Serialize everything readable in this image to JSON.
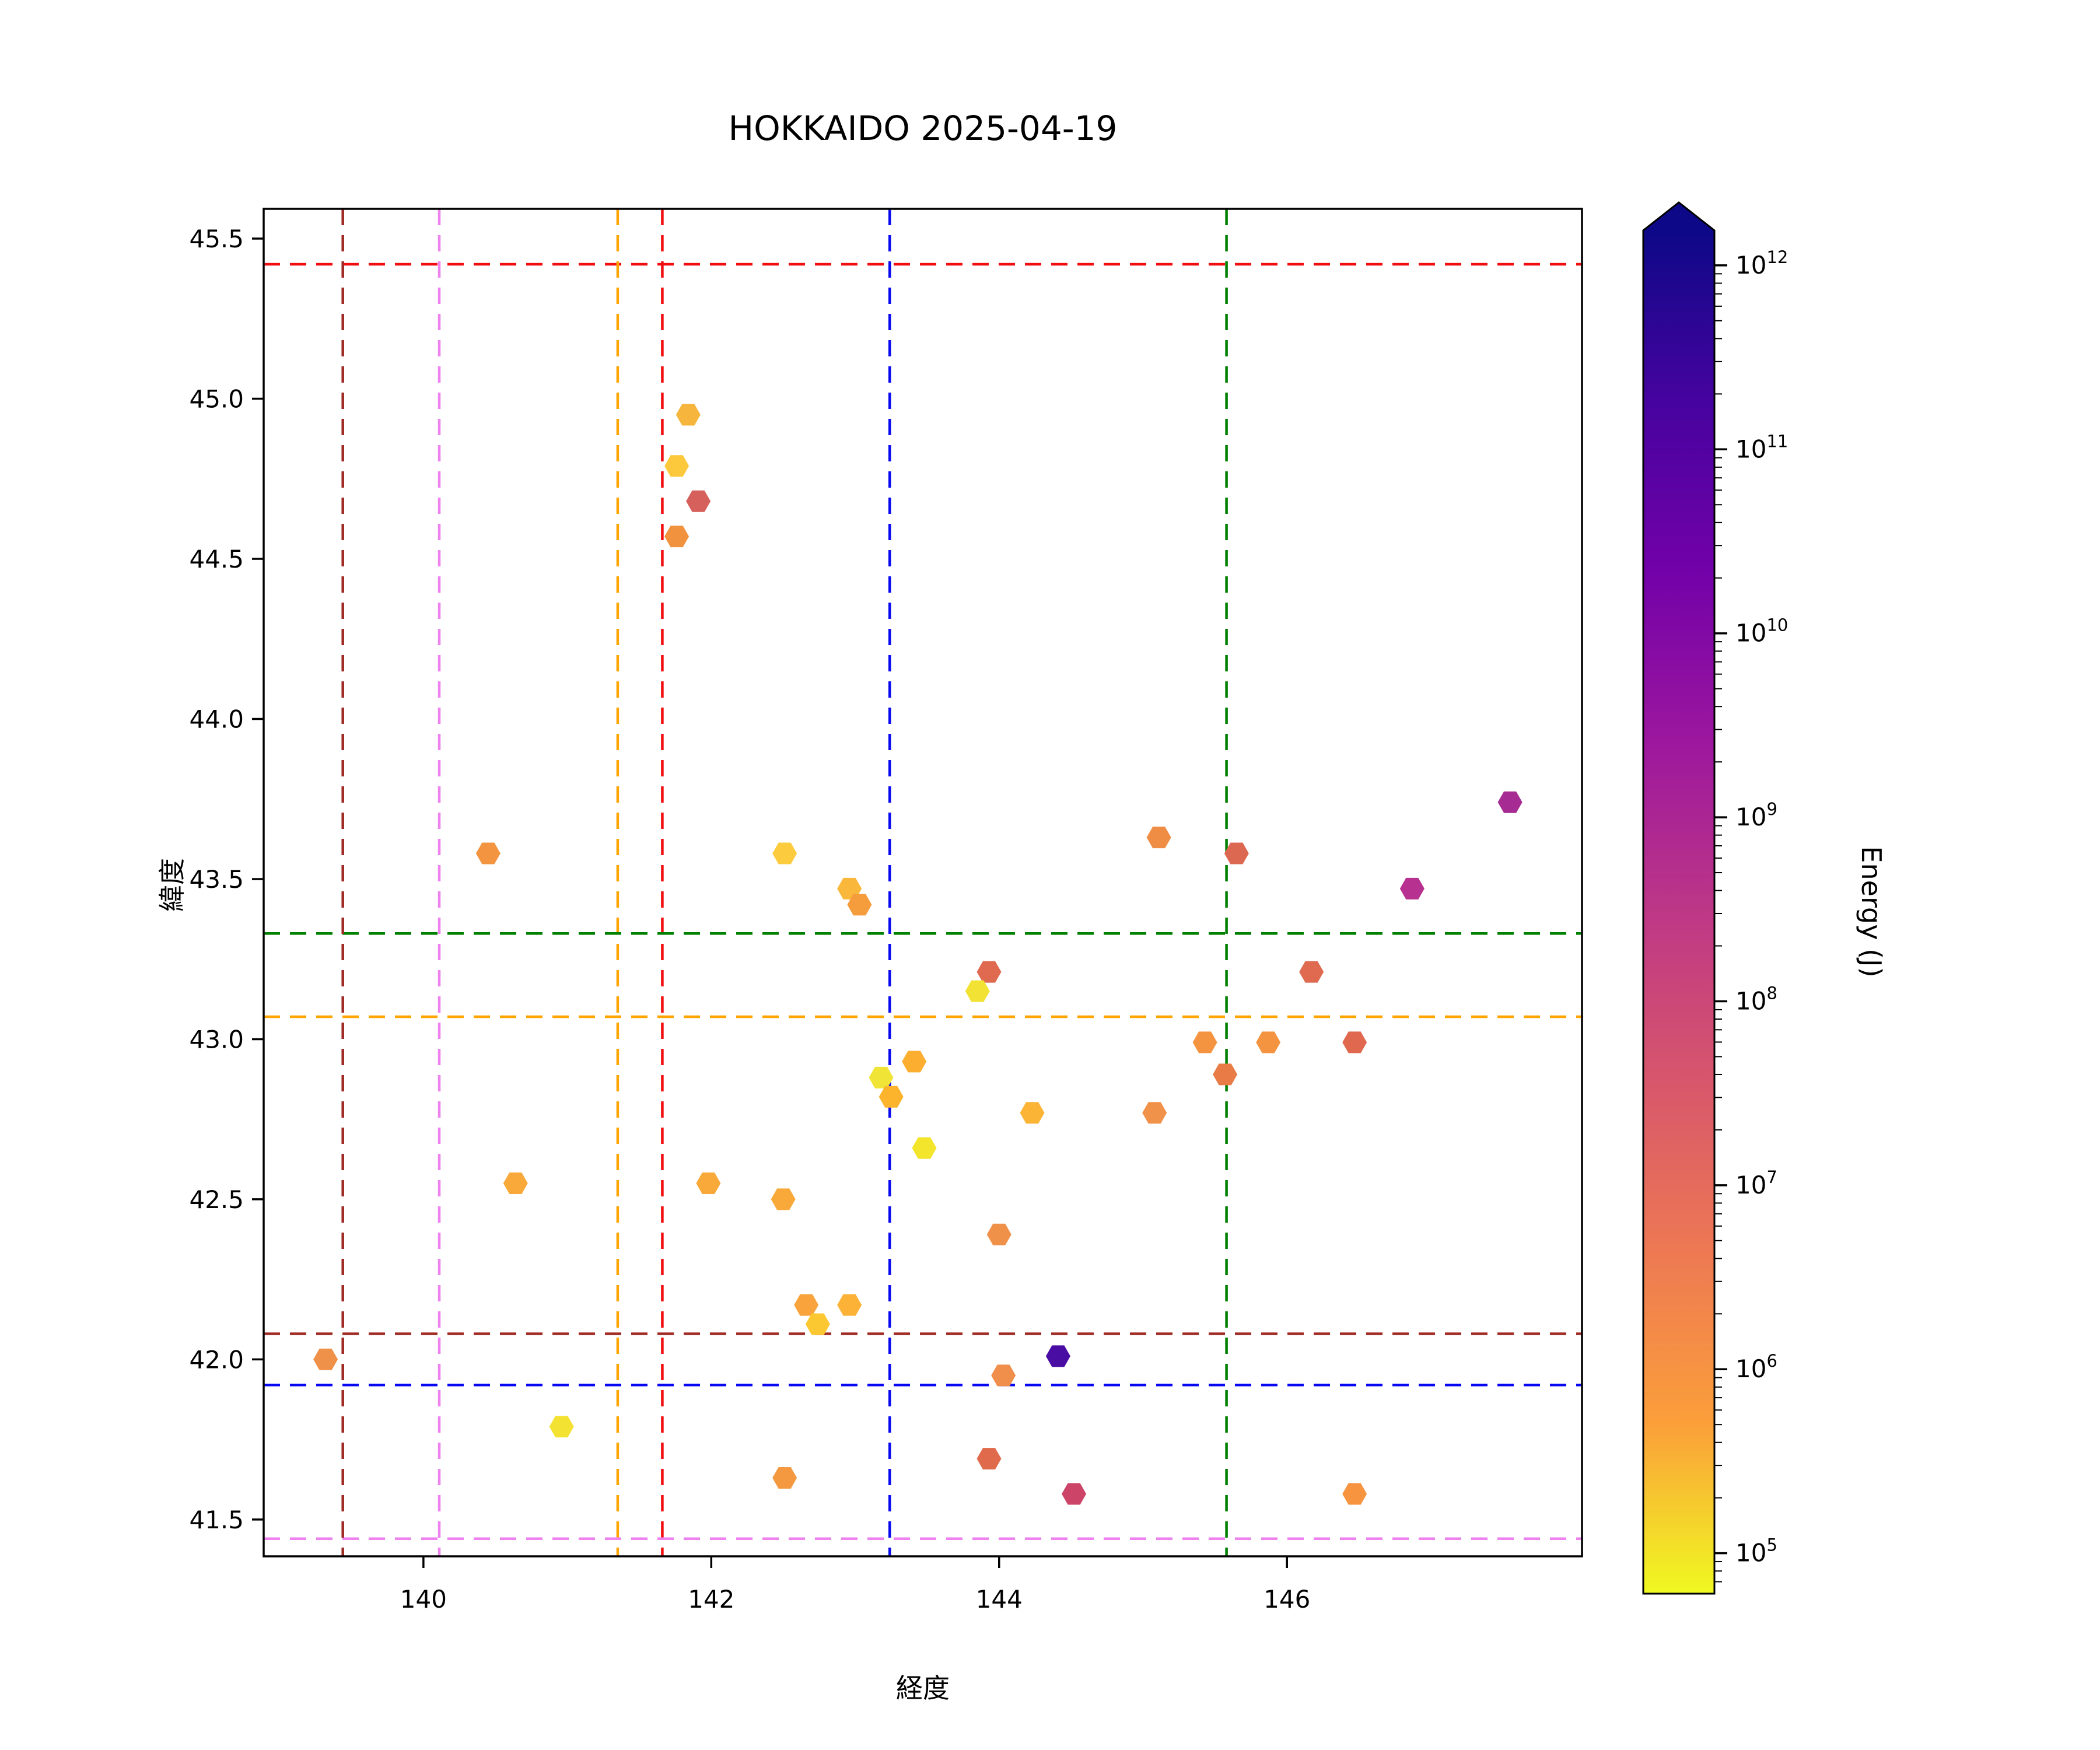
{
  "chart_data": {
    "type": "scatter",
    "title": "HOKKAIDO 2025-04-19",
    "xlabel": "経度",
    "ylabel": "緯度",
    "xlim": [
      138.89,
      148.05
    ],
    "ylim": [
      41.385,
      45.593
    ],
    "xticks": [
      140,
      142,
      144,
      146
    ],
    "yticks": [
      41.5,
      42.0,
      42.5,
      43.0,
      43.5,
      44.0,
      44.5,
      45.0,
      45.5
    ],
    "grid": false,
    "marker": "hexagon-flat-top",
    "marker_size_px": [
      42,
      37
    ],
    "colorbar": {
      "label": "Energy (J)",
      "scale": "log",
      "colormap": "plasma_r",
      "extend": "max",
      "tick_exponents": [
        5,
        6,
        7,
        8,
        9,
        10,
        11,
        12
      ],
      "tick_base": "10",
      "range_exponents": [
        4.78,
        12.19
      ],
      "gradient_top_to_bottom": [
        "#0d0887",
        "#46039f",
        "#7201a8",
        "#9c179e",
        "#bd3786",
        "#d8576b",
        "#ed7953",
        "#fb9f3a",
        "#f0f921"
      ]
    },
    "reference_lines": [
      {
        "name": "red-crosshair",
        "color": "#F10E10",
        "lon": 141.66,
        "lat": 45.42
      },
      {
        "name": "orange-crosshair",
        "color": "#FFA500",
        "lon": 141.35,
        "lat": 43.07
      },
      {
        "name": "green-crosshair",
        "color": "#008000",
        "lon": 145.58,
        "lat": 43.33
      },
      {
        "name": "blue-crosshair",
        "color": "#0808F0",
        "lon": 143.24,
        "lat": 41.92
      },
      {
        "name": "violet-crosshair",
        "color": "#EE82EE",
        "lon": 140.11,
        "lat": 41.44
      },
      {
        "name": "darkred-crosshair",
        "color": "#A02B25",
        "lon": 139.44,
        "lat": 42.08
      }
    ],
    "points": [
      {
        "lon": 141.84,
        "lat": 44.95,
        "color": "#F6B53C",
        "energy_j": 800000
      },
      {
        "lon": 141.76,
        "lat": 44.79,
        "color": "#FCC93C",
        "energy_j": 400000
      },
      {
        "lon": 141.91,
        "lat": 44.68,
        "color": "#D6605C",
        "energy_j": 30000000
      },
      {
        "lon": 141.76,
        "lat": 44.57,
        "color": "#F1923F",
        "energy_j": 3000000
      },
      {
        "lon": 139.32,
        "lat": 42.0,
        "color": "#F0914A",
        "energy_j": 3000000
      },
      {
        "lon": 140.45,
        "lat": 43.58,
        "color": "#F29440",
        "energy_j": 3000000
      },
      {
        "lon": 142.51,
        "lat": 43.58,
        "color": "#FCCB3E",
        "energy_j": 400000
      },
      {
        "lon": 142.96,
        "lat": 43.47,
        "color": "#F9B83C",
        "energy_j": 900000
      },
      {
        "lon": 143.03,
        "lat": 43.42,
        "color": "#F59C3D",
        "energy_j": 2000000
      },
      {
        "lon": 145.11,
        "lat": 43.63,
        "color": "#F08D44",
        "energy_j": 4000000
      },
      {
        "lon": 145.65,
        "lat": 43.58,
        "color": "#DD6852",
        "energy_j": 20000000
      },
      {
        "lon": 147.55,
        "lat": 43.74,
        "color": "#A62C93",
        "energy_j": 1000000000
      },
      {
        "lon": 146.87,
        "lat": 43.47,
        "color": "#B73190",
        "energy_j": 500000000
      },
      {
        "lon": 143.93,
        "lat": 43.21,
        "color": "#DF6A50",
        "energy_j": 20000000
      },
      {
        "lon": 143.85,
        "lat": 43.15,
        "color": "#F2E234",
        "energy_j": 150000
      },
      {
        "lon": 146.17,
        "lat": 43.21,
        "color": "#DF6A50",
        "energy_j": 20000000
      },
      {
        "lon": 145.43,
        "lat": 42.99,
        "color": "#F49441",
        "energy_j": 3000000
      },
      {
        "lon": 145.87,
        "lat": 42.99,
        "color": "#F49441",
        "energy_j": 3000000
      },
      {
        "lon": 146.47,
        "lat": 42.99,
        "color": "#DF684E",
        "energy_j": 20000000
      },
      {
        "lon": 145.57,
        "lat": 42.89,
        "color": "#E87B46",
        "energy_j": 8000000
      },
      {
        "lon": 143.41,
        "lat": 42.93,
        "color": "#FBAE30",
        "energy_j": 1200000
      },
      {
        "lon": 143.18,
        "lat": 42.88,
        "color": "#F0E436",
        "energy_j": 120000
      },
      {
        "lon": 143.25,
        "lat": 42.82,
        "color": "#FBB42C",
        "energy_j": 1000000
      },
      {
        "lon": 144.23,
        "lat": 42.77,
        "color": "#FCB436",
        "energy_j": 1000000
      },
      {
        "lon": 145.08,
        "lat": 42.77,
        "color": "#F1924A",
        "energy_j": 3000000
      },
      {
        "lon": 143.48,
        "lat": 42.66,
        "color": "#F2E52B",
        "energy_j": 120000
      },
      {
        "lon": 144.0,
        "lat": 42.39,
        "color": "#F0914A",
        "energy_j": 3000000
      },
      {
        "lon": 142.66,
        "lat": 42.17,
        "color": "#F8A33C",
        "energy_j": 1500000
      },
      {
        "lon": 142.74,
        "lat": 42.11,
        "color": "#FCC832",
        "energy_j": 400000
      },
      {
        "lon": 142.96,
        "lat": 42.17,
        "color": "#FBB237",
        "energy_j": 1000000
      },
      {
        "lon": 144.41,
        "lat": 42.01,
        "color": "#4A0DA3",
        "energy_j": 200000000000
      },
      {
        "lon": 144.03,
        "lat": 41.95,
        "color": "#F08F4B",
        "energy_j": 4000000
      },
      {
        "lon": 140.64,
        "lat": 42.55,
        "color": "#F9A939",
        "energy_j": 1300000
      },
      {
        "lon": 141.98,
        "lat": 42.55,
        "color": "#F9A939",
        "energy_j": 1300000
      },
      {
        "lon": 142.5,
        "lat": 42.5,
        "color": "#F9A939",
        "energy_j": 1300000
      },
      {
        "lon": 140.96,
        "lat": 41.79,
        "color": "#F4E233",
        "energy_j": 130000
      },
      {
        "lon": 142.51,
        "lat": 41.63,
        "color": "#F4993F",
        "energy_j": 2500000
      },
      {
        "lon": 143.93,
        "lat": 41.69,
        "color": "#E06B4C",
        "energy_j": 18000000
      },
      {
        "lon": 144.52,
        "lat": 41.58,
        "color": "#CC4568",
        "energy_j": 100000000
      },
      {
        "lon": 146.47,
        "lat": 41.58,
        "color": "#F69440",
        "energy_j": 3000000
      }
    ]
  }
}
